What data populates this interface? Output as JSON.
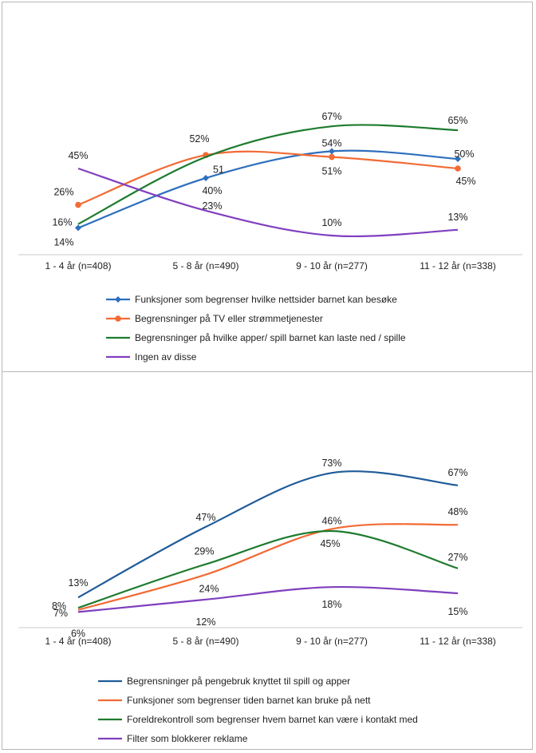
{
  "chart_data": [
    {
      "type": "line",
      "categories": [
        "1 - 4 år (n=408)",
        "5 - 8 år (n=490)",
        "9 - 10 år (n=277)",
        "11 - 12 år (n=338)"
      ],
      "ylim": [
        0,
        75
      ],
      "legend_position": "bottom",
      "grid": false,
      "series": [
        {
          "name": "Funksjoner som begrenser hvilke nettsider barnet kan besøke",
          "color": "#2e6fbd",
          "marker": "diamond",
          "values": [
            14,
            40,
            54,
            50
          ],
          "labels": [
            "14%",
            "40%",
            "54%",
            "50%"
          ]
        },
        {
          "name": "Begrensninger på TV eller strømmetjenester",
          "color": "#f26b35",
          "marker": "circle",
          "values": [
            26,
            52,
            51,
            45
          ],
          "labels": [
            "26%",
            "52%",
            "51%",
            "45%"
          ]
        },
        {
          "name": "Begrensninger på hvilke apper/ spill barnet kan laste ned / spille",
          "color": "#1e7b2e",
          "marker": "none",
          "values": [
            16,
            51,
            67,
            65
          ],
          "labels": [
            "16%",
            "51",
            "67%",
            "65%"
          ]
        },
        {
          "name": "Ingen av disse",
          "color": "#7f3fbf",
          "marker": "none",
          "values": [
            45,
            23,
            10,
            13
          ],
          "labels": [
            "45%",
            "23%",
            "10%",
            "13%"
          ]
        }
      ]
    },
    {
      "type": "line",
      "categories": [
        "1 - 4 år (n=408)",
        "5 - 8 år (n=490)",
        "9 - 10 år (n=277)",
        "11 - 12 år (n=338)"
      ],
      "ylim": [
        0,
        80
      ],
      "legend_position": "bottom",
      "grid": false,
      "series": [
        {
          "name": "Begrensninger på pengebruk knyttet til spill og apper",
          "color": "#1f5c99",
          "marker": "none",
          "values": [
            13,
            47,
            73,
            67
          ],
          "labels": [
            "13%",
            "47%",
            "73%",
            "67%"
          ]
        },
        {
          "name": "Funksjoner som begrenser tiden barnet kan bruke på nett",
          "color": "#f26b35",
          "marker": "none",
          "values": [
            7,
            24,
            46,
            48
          ],
          "labels": [
            "7%",
            "24%",
            "46%",
            "48%"
          ]
        },
        {
          "name": "Foreldrekontroll som begrenser hvem barnet kan være i kontakt med",
          "color": "#1e7b2e",
          "marker": "none",
          "values": [
            8,
            29,
            45,
            27
          ],
          "labels": [
            "8%",
            "29%",
            "45%",
            "27%"
          ]
        },
        {
          "name": "Filter som blokkerer reklame",
          "color": "#7f3fbf",
          "marker": "none",
          "values": [
            6,
            12,
            18,
            15
          ],
          "labels": [
            "6%",
            "12%",
            "18%",
            "15%"
          ]
        }
      ]
    }
  ]
}
